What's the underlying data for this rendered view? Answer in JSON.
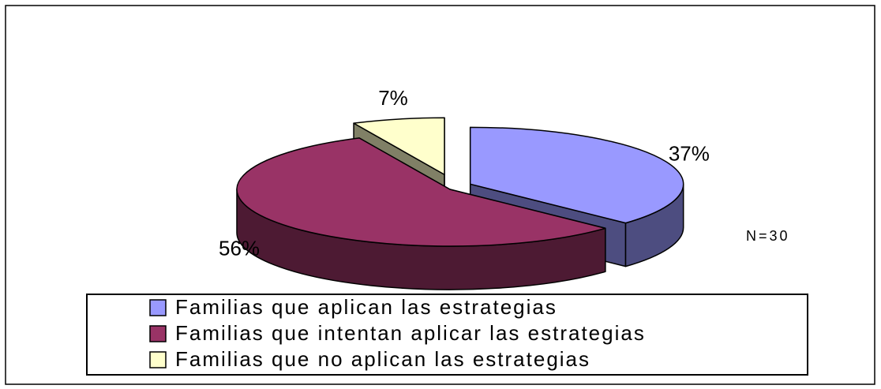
{
  "chart_data": {
    "type": "pie",
    "three_d": true,
    "categories": [
      "Familias que aplican las estrategias",
      "Familias que intentan aplicar las estrategias",
      "Familias que no aplican las estrategias"
    ],
    "values": [
      37,
      56,
      7
    ],
    "value_labels": [
      "37%",
      "56%",
      "7%"
    ],
    "colors": [
      "#9999ff",
      "#993366",
      "#ffffcc"
    ],
    "annotation": "N=30",
    "legend": "bottom"
  }
}
